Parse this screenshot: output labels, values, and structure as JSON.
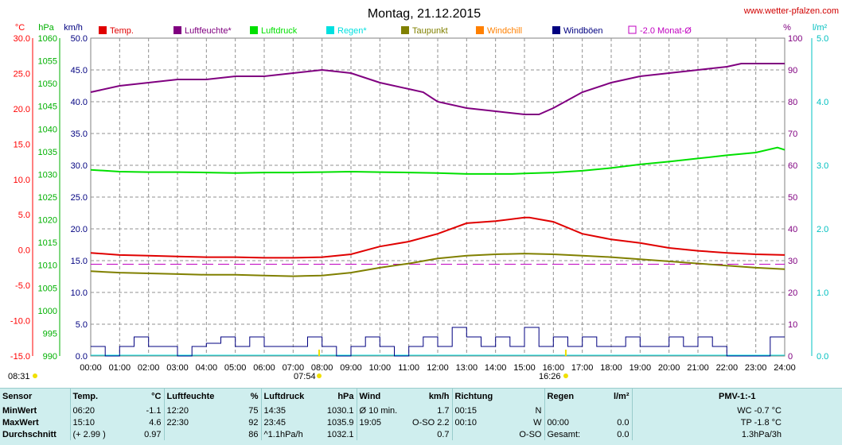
{
  "chart_data": {
    "type": "line",
    "title": "Montag, 21.12.2015",
    "source": "www.wetter-pfalzen.com",
    "x_range": [
      "00:00",
      "24:00"
    ],
    "x_tick_labels": [
      "00:00",
      "01:00",
      "02:00",
      "03:00",
      "04:00",
      "05:00",
      "06:00",
      "07:00",
      "08:00",
      "09:00",
      "10:00",
      "11:00",
      "12:00",
      "13:00",
      "14:00",
      "15:00",
      "16:00",
      "17:00",
      "18:00",
      "19:00",
      "20:00",
      "21:00",
      "22:00",
      "23:00",
      "24:00"
    ],
    "axes": {
      "temp": {
        "unit": "°C",
        "range": [
          -15,
          30
        ],
        "ticks": [
          "30.0",
          "25.0",
          "20.0",
          "15.0",
          "10.0",
          "5.0",
          "0.0",
          "-5.0",
          "-10.0",
          "-15.0"
        ],
        "color": "#ff0000"
      },
      "pressure": {
        "unit": "hPa",
        "range": [
          990,
          1060
        ],
        "ticks": [
          "1060",
          "1055",
          "1050",
          "1045",
          "1040",
          "1035",
          "1030",
          "1025",
          "1020",
          "1015",
          "1010",
          "1005",
          "1000",
          "995",
          "990"
        ],
        "color": "#00b000"
      },
      "wind": {
        "unit": "km/h",
        "range": [
          0,
          50
        ],
        "ticks": [
          "50.0",
          "45.0",
          "40.0",
          "35.0",
          "30.0",
          "25.0",
          "20.0",
          "15.0",
          "10.0",
          "5.0",
          "0.0"
        ],
        "color": "#000080"
      },
      "humidity": {
        "unit": "%",
        "range": [
          0,
          100
        ],
        "ticks": [
          "100",
          "90",
          "80",
          "70",
          "60",
          "50",
          "40",
          "30",
          "20",
          "10",
          "0"
        ],
        "color": "#800080"
      },
      "rain": {
        "unit": "l/m²",
        "range": [
          0,
          5
        ],
        "ticks": [
          "5.0",
          "4.0",
          "3.0",
          "2.0",
          "1.0",
          "0.0"
        ],
        "color": "#00c0c0"
      }
    },
    "legend": [
      {
        "name": "Temp.",
        "color": "#e00000"
      },
      {
        "name": "Luftfeuchte*",
        "color": "#800080"
      },
      {
        "name": "Luftdruck",
        "color": "#00e000"
      },
      {
        "name": "Regen*",
        "color": "#00e0e0"
      },
      {
        "name": "Taupunkt",
        "color": "#808000"
      },
      {
        "name": "Windchill",
        "color": "#ff8000"
      },
      {
        "name": "Windböen",
        "color": "#000080"
      },
      {
        "name": "-2.0 Monat-Ø",
        "color": "#c000c0"
      }
    ],
    "monthly_avg_temp": -2.0,
    "series": [
      {
        "name": "Temp.",
        "axis": "temp",
        "x": [
          0,
          1,
          2,
          3,
          4,
          5,
          6,
          7,
          8,
          9,
          10,
          11,
          12,
          13,
          14,
          15,
          15.17,
          16,
          17,
          18,
          19,
          20,
          21,
          22,
          23,
          24
        ],
        "values": [
          -0.4,
          -0.7,
          -0.8,
          -0.9,
          -1.0,
          -1.0,
          -1.1,
          -1.1,
          -1.0,
          -0.6,
          0.5,
          1.2,
          2.3,
          3.8,
          4.1,
          4.6,
          4.6,
          4.0,
          2.3,
          1.5,
          1.0,
          0.3,
          -0.1,
          -0.4,
          -0.6,
          -0.7
        ]
      },
      {
        "name": "Luftfeuchte*",
        "axis": "humidity",
        "x": [
          0,
          1,
          2,
          3,
          4,
          5,
          6,
          7,
          8,
          9,
          10,
          11,
          11.5,
          12,
          13,
          14,
          15,
          15.5,
          16,
          17,
          18,
          19,
          20,
          21,
          22,
          22.5,
          23,
          24
        ],
        "values": [
          83,
          85,
          86,
          87,
          87,
          88,
          88,
          89,
          90,
          89,
          86,
          84,
          83,
          80,
          78,
          77,
          76,
          76,
          78,
          83,
          86,
          88,
          89,
          90,
          91,
          92,
          92,
          92
        ]
      },
      {
        "name": "Luftdruck",
        "axis": "pressure",
        "x": [
          0,
          1,
          2,
          3,
          4,
          5,
          6,
          7,
          8,
          9,
          10,
          11,
          12,
          13,
          14,
          14.58,
          15,
          16,
          17,
          18,
          19,
          20,
          21,
          22,
          23,
          23.75,
          24
        ],
        "values": [
          1031.0,
          1030.6,
          1030.5,
          1030.5,
          1030.4,
          1030.3,
          1030.4,
          1030.4,
          1030.5,
          1030.6,
          1030.5,
          1030.4,
          1030.3,
          1030.1,
          1030.1,
          1030.1,
          1030.2,
          1030.4,
          1030.8,
          1031.4,
          1032.2,
          1032.8,
          1033.5,
          1034.2,
          1034.8,
          1035.9,
          1035.4
        ]
      },
      {
        "name": "Taupunkt",
        "axis": "temp",
        "x": [
          0,
          1,
          2,
          3,
          4,
          5,
          6,
          7,
          8,
          9,
          10,
          11,
          12,
          13,
          14,
          15,
          16,
          17,
          18,
          19,
          20,
          21,
          22,
          23,
          24
        ],
        "values": [
          -3.0,
          -3.2,
          -3.3,
          -3.4,
          -3.5,
          -3.5,
          -3.6,
          -3.7,
          -3.6,
          -3.2,
          -2.5,
          -1.9,
          -1.2,
          -0.8,
          -0.6,
          -0.5,
          -0.6,
          -0.8,
          -1.0,
          -1.3,
          -1.6,
          -1.9,
          -2.2,
          -2.5,
          -2.7
        ]
      },
      {
        "name": "Windböen",
        "axis": "wind",
        "x": [
          0,
          0.5,
          1,
          1.5,
          2,
          2.5,
          3,
          3.5,
          4,
          4.5,
          5,
          5.5,
          6,
          6.5,
          7,
          7.5,
          8,
          8.5,
          9,
          9.5,
          10,
          10.5,
          11,
          11.5,
          12,
          12.5,
          13,
          13.5,
          14,
          14.5,
          15,
          15.5,
          16,
          16.5,
          17,
          17.5,
          18,
          18.5,
          19,
          19.5,
          20,
          20.5,
          21,
          21.5,
          22,
          22.5,
          23,
          23.5,
          24
        ],
        "values": [
          1.5,
          0,
          1.5,
          3,
          1.5,
          1.5,
          0,
          1.5,
          2,
          3,
          1.5,
          3,
          1.5,
          1.5,
          1.5,
          3,
          1.5,
          0,
          1.5,
          3,
          1.5,
          0,
          1.5,
          3,
          1.5,
          4.5,
          3,
          1.5,
          3,
          1.5,
          4.5,
          1.5,
          3,
          1.5,
          3,
          1.5,
          1.5,
          3,
          1.5,
          1.5,
          3,
          1.5,
          3,
          1.5,
          0,
          0,
          0,
          3,
          3
        ]
      }
    ],
    "markers": [
      {
        "label": "08:31",
        "x": 0
      },
      {
        "label": "07:54",
        "x": 7.9
      },
      {
        "label": "16:26",
        "x": 16.43
      }
    ]
  },
  "stats": {
    "header": {
      "sensor": "Sensor",
      "temp": "Temp.",
      "temp_unit": "°C",
      "hum": "Luftfeuchte",
      "hum_unit": "%",
      "press": "Luftdruck",
      "press_unit": "hPa",
      "wind": "Wind",
      "wind_unit": "km/h",
      "dir": "Richtung",
      "rain": "Regen",
      "rain_unit": "l/m²",
      "pmv": "PMV-1:-1"
    },
    "rows": [
      {
        "label": "MinWert",
        "temp_time": "06:20",
        "temp_val": "-1.1",
        "hum_time": "12:20",
        "hum_val": "75",
        "press_time": "14:35",
        "press_val": "1030.1",
        "wind_time": "Ø 10 min.",
        "wind_val": "1.7",
        "dir_time": "00:15",
        "dir_val": "N",
        "rain_time": "",
        "rain_val": "",
        "pmv": "WC -0.7 °C"
      },
      {
        "label": "MaxWert",
        "temp_time": "15:10",
        "temp_val": "4.6",
        "hum_time": "22:30",
        "hum_val": "92",
        "press_time": "23:45",
        "press_val": "1035.9",
        "wind_time": "19:05",
        "wind_val": "O-SO 2.2",
        "dir_time": "00:10",
        "dir_val": "W",
        "rain_time": "00:00",
        "rain_val": "0.0",
        "pmv": "TP -1.8 °C"
      },
      {
        "label": "Durchschnitt",
        "temp_time": "(+ 2.99 )",
        "temp_val": "0.97",
        "hum_time": "",
        "hum_val": "86",
        "press_time": "^1.1hPa/h",
        "press_val": "1032.1",
        "wind_time": "",
        "wind_val": "0.7",
        "dir_time": "",
        "dir_val": "O-SO",
        "rain_time": "Gesamt:",
        "rain_val": "0.0",
        "pmv": "1.3hPa/3h"
      }
    ]
  }
}
